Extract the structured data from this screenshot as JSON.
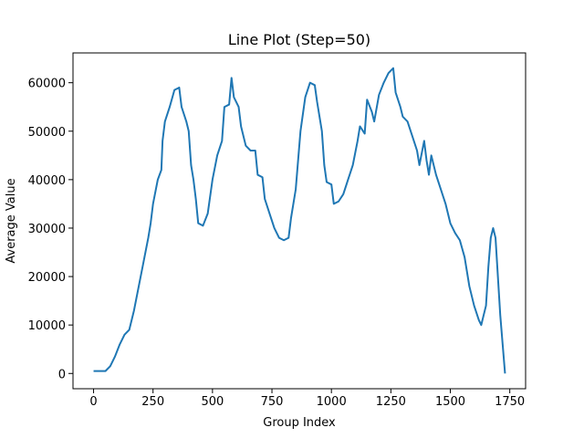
{
  "chart_data": {
    "type": "line",
    "title": "Line Plot (Step=50)",
    "xlabel": "Group Index",
    "ylabel": "Average Value",
    "x": [
      0,
      50,
      70,
      90,
      110,
      130,
      150,
      170,
      190,
      210,
      230,
      240,
      250,
      270,
      285,
      290,
      300,
      320,
      340,
      360,
      370,
      390,
      400,
      410,
      420,
      430,
      440,
      460,
      480,
      500,
      520,
      540,
      550,
      570,
      580,
      590,
      610,
      620,
      640,
      660,
      680,
      690,
      710,
      720,
      740,
      760,
      780,
      800,
      820,
      830,
      850,
      870,
      890,
      910,
      930,
      940,
      960,
      970,
      980,
      1000,
      1010,
      1030,
      1050,
      1070,
      1090,
      1110,
      1120,
      1140,
      1150,
      1170,
      1180,
      1200,
      1220,
      1240,
      1260,
      1270,
      1290,
      1300,
      1320,
      1340,
      1360,
      1370,
      1390,
      1400,
      1410,
      1420,
      1440,
      1460,
      1480,
      1500,
      1520,
      1540,
      1560,
      1580,
      1600,
      1620,
      1630,
      1650,
      1660,
      1670,
      1680,
      1690,
      1710,
      1730
    ],
    "series": [
      {
        "name": "Average Value",
        "color": "#1f77b4",
        "values": [
          500,
          500,
          1500,
          3500,
          6000,
          8000,
          9000,
          13000,
          18000,
          23000,
          28000,
          31000,
          35000,
          40000,
          42000,
          48000,
          52000,
          55000,
          58500,
          59000,
          55000,
          52000,
          50000,
          43000,
          40000,
          36000,
          31000,
          30500,
          33000,
          40000,
          45000,
          48000,
          55000,
          55500,
          61000,
          57000,
          55000,
          51000,
          47000,
          46000,
          46000,
          41000,
          40500,
          36000,
          33000,
          30000,
          28000,
          27500,
          28000,
          32000,
          38000,
          50000,
          57000,
          60000,
          59500,
          56000,
          50000,
          43000,
          39500,
          39000,
          35000,
          35500,
          37000,
          40000,
          43000,
          48000,
          51000,
          49500,
          56500,
          54000,
          52000,
          57500,
          60000,
          62000,
          63000,
          58000,
          55000,
          53000,
          52000,
          49000,
          46000,
          43000,
          48000,
          44000,
          41000,
          45000,
          41000,
          38000,
          35000,
          31000,
          29000,
          27500,
          24000,
          18000,
          14000,
          11000,
          10000,
          14000,
          22000,
          28000,
          30000,
          28000,
          12000,
          0
        ]
      }
    ],
    "xlim": [
      -86.5,
      1816.5
    ],
    "ylim": [
      -3150,
      66150
    ],
    "xticks": [
      0,
      250,
      500,
      750,
      1000,
      1250,
      1500,
      1750
    ],
    "yticks": [
      0,
      10000,
      20000,
      30000,
      40000,
      50000,
      60000
    ]
  }
}
